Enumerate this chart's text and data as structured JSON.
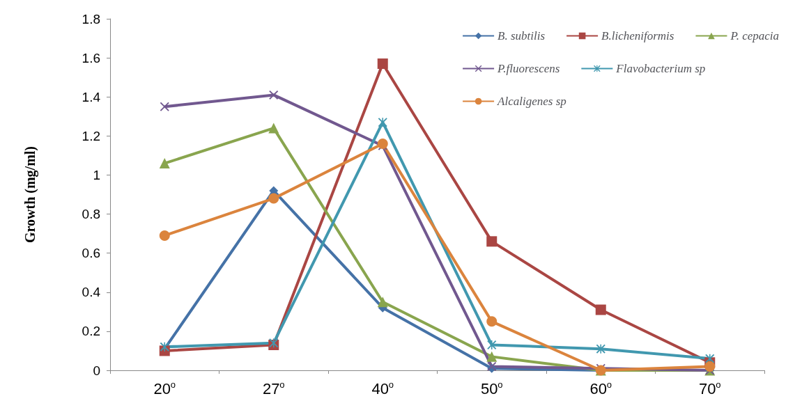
{
  "chart_data": {
    "type": "line",
    "ylabel": "Growth (mg/ml)",
    "categories": [
      "20$^{o}$",
      "27$^{o}$",
      "40$^{o}$",
      "50$^{o}$",
      "60$^{o}$",
      "70$^{o}$"
    ],
    "ylim": [
      0,
      1.8
    ],
    "yticks": [
      0,
      0.2,
      0.4,
      0.6,
      0.8,
      1,
      1.2,
      1.4,
      1.6,
      1.8
    ],
    "grid": false,
    "legend": "top right",
    "series": [
      {
        "name": "B. subtilis",
        "color": "#4572a7",
        "marker": "diamond",
        "values": [
          0.11,
          0.92,
          0.32,
          0.01,
          0.0,
          0.0
        ]
      },
      {
        "name": "B.licheniformis",
        "color": "#aa4643",
        "marker": "square",
        "values": [
          0.1,
          0.13,
          1.57,
          0.66,
          0.31,
          0.04
        ]
      },
      {
        "name": "P. cepacia",
        "color": "#89a54e",
        "marker": "triangle",
        "values": [
          1.06,
          1.24,
          0.35,
          0.07,
          0.0,
          0.0
        ]
      },
      {
        "name": "P.fluorescens",
        "color": "#71588f",
        "marker": "cross",
        "values": [
          1.35,
          1.41,
          1.15,
          0.02,
          0.01,
          0.0
        ]
      },
      {
        "name": "Flavobacterium sp",
        "color": "#4198af",
        "marker": "star",
        "values": [
          0.12,
          0.14,
          1.27,
          0.13,
          0.11,
          0.06
        ]
      },
      {
        "name": "Alcaligenes sp",
        "color": "#db843d",
        "marker": "circle",
        "values": [
          0.69,
          0.88,
          1.16,
          0.25,
          0.0,
          0.02
        ]
      }
    ]
  }
}
